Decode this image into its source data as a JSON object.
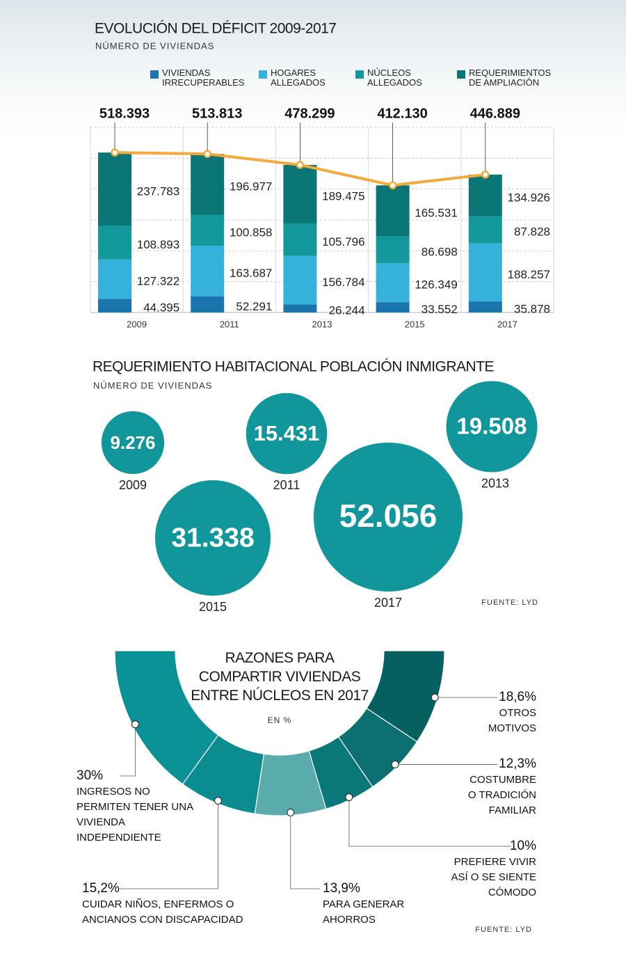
{
  "chart_data": [
    {
      "type": "bar",
      "stacked": true,
      "title": "EVOLUCIÓN DEL DÉFICIT 2009-2017",
      "subtitle": "NÚMERO DE VIVIENDAS",
      "categories": [
        "2009",
        "2011",
        "2013",
        "2015",
        "2017"
      ],
      "series": [
        {
          "name": "VIVIENDAS IRRECUPERABLES",
          "color": "#1a74ae",
          "values": [
            44395,
            52291,
            26244,
            33552,
            35878
          ],
          "value_labels": [
            "44.395",
            "52.291",
            "26.244",
            "33.552",
            "35.878"
          ]
        },
        {
          "name": "HOGARES ALLEGADOS",
          "color": "#36b1dc",
          "values": [
            127322,
            163687,
            156784,
            126349,
            188257
          ],
          "value_labels": [
            "127.322",
            "163.687",
            "156.784",
            "126.349",
            "188.257"
          ]
        },
        {
          "name": "NÚCLEOS ALLEGADOS",
          "color": "#13999b",
          "values": [
            108893,
            100858,
            105796,
            86698,
            87828
          ],
          "value_labels": [
            "108.893",
            "100.858",
            "105.796",
            "86.698",
            "87.828"
          ]
        },
        {
          "name": "REQUERIMIENTOS DE AMPLIACIÓN",
          "color": "#0b7676",
          "values": [
            237783,
            196977,
            189475,
            165531,
            134926
          ],
          "value_labels": [
            "237.783",
            "196.977",
            "189.475",
            "165.531",
            "134.926"
          ]
        }
      ],
      "totals": {
        "type": "line",
        "color": "#f4a93b",
        "values": [
          518393,
          513813,
          478299,
          412130,
          446889
        ],
        "value_labels": [
          "518.393",
          "513.813",
          "478.299",
          "412.130",
          "446.889"
        ]
      },
      "ylim": [
        0,
        600000
      ],
      "yticks": [
        0,
        100000,
        200000,
        300000,
        400000,
        500000,
        600000
      ],
      "grid": true
    },
    {
      "type": "bubble",
      "title": "REQUERIMIENTO HABITACIONAL POBLACIÓN INMIGRANTE",
      "subtitle": "NÚMERO DE VIVIENDAS",
      "categories": [
        "2009",
        "2011",
        "2013",
        "2015",
        "2017"
      ],
      "values": [
        9276,
        15431,
        19508,
        31338,
        52056
      ],
      "value_labels": [
        "9.276",
        "15.431",
        "19.508",
        "31.338",
        "52.056"
      ],
      "color": "#10969b",
      "source": "FUENTE: LYD"
    },
    {
      "type": "donut",
      "title": "RAZONES PARA COMPARTIR VIVIENDAS ENTRE NÚCLEOS EN 2017",
      "subtitle": "EN %",
      "categories": [
        "INGRESOS NO PERMITEN TENER UNA VIVIENDA INDEPENDIENTE",
        "CUIDAR NIÑOS, ENFERMOS O ANCIANOS CON DISCAPACIDAD",
        "PARA GENERAR AHORROS",
        "PREFIERE VIVIR ASÍ O SE SIENTE CÓMODO",
        "COSTUMBRE O TRADICIÓN FAMILIAR",
        "OTROS MOTIVOS"
      ],
      "values": [
        30,
        15.2,
        13.9,
        10,
        12.3,
        18.6
      ],
      "value_labels": [
        "30%",
        "15,2%",
        "13,9%",
        "10%",
        "12,3%",
        "18,6%"
      ],
      "colors": [
        "#0b9297",
        "#0a8c90",
        "#5aabab",
        "#0a7779",
        "#0c7072",
        "#066060"
      ],
      "source": "FUENTE: LYD"
    }
  ]
}
